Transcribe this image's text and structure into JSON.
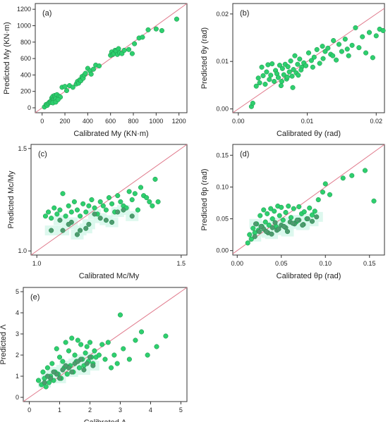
{
  "figure": {
    "accent_point_color": "#2ecf6e",
    "dark_point_color": "#4f9a6f",
    "point_stroke": "#1c8f4a",
    "identity_line_color": "#e07a8c",
    "tint_color": "#d9f7ec"
  },
  "chart_data": [
    {
      "id": "a",
      "type": "scatter",
      "panel_label": "(a)",
      "xlabel": "Calibrated My (KN·m)",
      "ylabel": "Predicted My (KN·m)",
      "xlim": [
        -60,
        1270
      ],
      "ylim": [
        -60,
        1270
      ],
      "xticks": [
        0,
        200,
        400,
        600,
        800,
        1000,
        1200
      ],
      "yticks": [
        0,
        200,
        400,
        600,
        800,
        1000,
        1200
      ],
      "xtick_labels": [
        "0",
        "200",
        "400",
        "600",
        "800",
        "1000",
        "1200"
      ],
      "ytick_labels": [
        "0",
        "200",
        "400",
        "600",
        "800",
        "1000",
        "1200"
      ],
      "identity_line": true,
      "x": [
        20,
        35,
        45,
        55,
        65,
        75,
        80,
        85,
        90,
        95,
        100,
        105,
        110,
        115,
        120,
        130,
        150,
        160,
        175,
        200,
        215,
        240,
        270,
        300,
        310,
        320,
        330,
        340,
        350,
        360,
        370,
        380,
        400,
        420,
        430,
        450,
        470,
        500,
        600,
        610,
        620,
        630,
        640,
        650,
        660,
        670,
        680,
        700,
        720,
        760,
        790,
        810,
        850,
        880,
        930,
        1000,
        1050,
        1180,
        95,
        120,
        140
      ],
      "y": [
        10,
        40,
        30,
        55,
        70,
        80,
        65,
        120,
        90,
        140,
        100,
        85,
        150,
        130,
        110,
        160,
        140,
        130,
        250,
        260,
        210,
        270,
        250,
        290,
        320,
        300,
        340,
        330,
        380,
        360,
        400,
        420,
        480,
        450,
        410,
        470,
        520,
        510,
        640,
        680,
        650,
        660,
        700,
        690,
        650,
        720,
        670,
        660,
        700,
        710,
        660,
        780,
        850,
        860,
        950,
        960,
        940,
        1080,
        60,
        70,
        100
      ]
    },
    {
      "id": "b",
      "type": "scatter",
      "panel_label": "(b)",
      "xlabel": "Calibrated θy (rad)",
      "ylabel": "Predicted θy (rad)",
      "xlim": [
        -0.0008,
        0.0212
      ],
      "ylim": [
        -0.0008,
        0.0222
      ],
      "xticks": [
        0,
        0.01,
        0.02
      ],
      "yticks": [
        0,
        0.01,
        0.02
      ],
      "xtick_labels": [
        "0.00",
        "0.01",
        "0.02"
      ],
      "ytick_labels": [
        "0.00",
        "0.01",
        "0.02"
      ],
      "identity_line": true,
      "x": [
        0.0019,
        0.0021,
        0.0026,
        0.0029,
        0.0031,
        0.0034,
        0.0036,
        0.0039,
        0.0041,
        0.0043,
        0.0045,
        0.0047,
        0.0049,
        0.0052,
        0.0054,
        0.0056,
        0.0058,
        0.006,
        0.0062,
        0.0064,
        0.0066,
        0.0068,
        0.007,
        0.0072,
        0.0074,
        0.0076,
        0.0078,
        0.008,
        0.0082,
        0.0084,
        0.0086,
        0.0089,
        0.0092,
        0.0095,
        0.0098,
        0.0102,
        0.0106,
        0.011,
        0.0114,
        0.0118,
        0.0122,
        0.0126,
        0.013,
        0.0134,
        0.0138,
        0.0142,
        0.0146,
        0.015,
        0.0155,
        0.016,
        0.0165,
        0.017,
        0.0175,
        0.018,
        0.0185,
        0.019,
        0.0195,
        0.02,
        0.0205,
        0.021,
        0.0063,
        0.0071,
        0.0079,
        0.0087,
        0.0091,
        0.0108,
        0.0123,
        0.0137,
        0.0158
      ],
      "y": [
        0.0005,
        0.0012,
        0.0048,
        0.0065,
        0.0055,
        0.0088,
        0.007,
        0.0052,
        0.0078,
        0.0093,
        0.0062,
        0.0071,
        0.0095,
        0.0058,
        0.0081,
        0.0074,
        0.0066,
        0.0092,
        0.0049,
        0.0085,
        0.0072,
        0.0094,
        0.0063,
        0.0089,
        0.0078,
        0.0101,
        0.0069,
        0.0083,
        0.0112,
        0.0076,
        0.0094,
        0.0105,
        0.0088,
        0.0097,
        0.0091,
        0.0118,
        0.0102,
        0.0109,
        0.0125,
        0.0096,
        0.0132,
        0.0121,
        0.0128,
        0.0115,
        0.0144,
        0.0103,
        0.0136,
        0.0121,
        0.0147,
        0.0112,
        0.0134,
        0.0171,
        0.0129,
        0.0152,
        0.0118,
        0.0161,
        0.0108,
        0.0154,
        0.0168,
        0.0165,
        0.0058,
        0.0067,
        0.0045,
        0.0071,
        0.0082,
        0.0088,
        0.0106,
        0.0112,
        0.0126
      ]
    },
    {
      "id": "c",
      "type": "scatter",
      "panel_label": "(c)",
      "xlabel": "Calibrated Mc/My",
      "ylabel": "Predicted Mc/My",
      "xlim": [
        0.98,
        1.52
      ],
      "ylim": [
        0.98,
        1.52
      ],
      "xticks": [
        1.0,
        1.5
      ],
      "yticks": [
        1.0,
        1.5
      ],
      "xtick_labels": [
        "1.0",
        "1.5"
      ],
      "ytick_labels": [
        "1.0",
        "1.5"
      ],
      "identity_line": true,
      "x": [
        1.03,
        1.04,
        1.05,
        1.06,
        1.07,
        1.08,
        1.09,
        1.1,
        1.11,
        1.12,
        1.13,
        1.14,
        1.15,
        1.16,
        1.17,
        1.18,
        1.19,
        1.2,
        1.21,
        1.22,
        1.23,
        1.24,
        1.25,
        1.26,
        1.27,
        1.28,
        1.29,
        1.3,
        1.31,
        1.32,
        1.33,
        1.34,
        1.35,
        1.36,
        1.37,
        1.38,
        1.39,
        1.4,
        1.41,
        1.42,
        1.09,
        1.12,
        1.15,
        1.18,
        1.22,
        1.26,
        1.3,
        1.05,
        1.08,
        1.11,
        1.14,
        1.17,
        1.2,
        1.24,
        1.28,
        1.33
      ],
      "y": [
        1.17,
        1.19,
        1.16,
        1.21,
        1.18,
        1.2,
        1.28,
        1.17,
        1.22,
        1.19,
        1.24,
        1.2,
        1.17,
        1.23,
        1.19,
        1.22,
        1.25,
        1.21,
        1.18,
        1.24,
        1.22,
        1.2,
        1.26,
        1.23,
        1.19,
        1.27,
        1.24,
        1.22,
        1.21,
        1.29,
        1.25,
        1.28,
        1.2,
        1.31,
        1.27,
        1.26,
        1.24,
        1.22,
        1.35,
        1.24,
        1.1,
        1.14,
        1.1,
        1.13,
        1.16,
        1.14,
        1.2,
        1.1,
        1.15,
        1.13,
        1.08,
        1.11,
        1.18,
        1.15,
        1.19,
        1.17
      ]
    },
    {
      "id": "d",
      "type": "scatter",
      "panel_label": "(d)",
      "xlabel": "Calibrated θp (rad)",
      "ylabel": "Predicted θp (rad)",
      "xlim": [
        -0.005,
        0.167
      ],
      "ylim": [
        -0.007,
        0.167
      ],
      "xticks": [
        0,
        0.05,
        0.1,
        0.15
      ],
      "yticks": [
        0,
        0.05,
        0.1,
        0.15
      ],
      "xtick_labels": [
        "0.00",
        "0.05",
        "0.10",
        "0.15"
      ],
      "ytick_labels": [
        "0.00",
        "0.05",
        "0.10",
        "0.15"
      ],
      "identity_line": true,
      "x": [
        0.012,
        0.014,
        0.016,
        0.018,
        0.02,
        0.022,
        0.024,
        0.026,
        0.028,
        0.03,
        0.032,
        0.034,
        0.036,
        0.038,
        0.04,
        0.042,
        0.044,
        0.046,
        0.048,
        0.05,
        0.052,
        0.055,
        0.058,
        0.061,
        0.064,
        0.067,
        0.07,
        0.073,
        0.076,
        0.079,
        0.082,
        0.085,
        0.088,
        0.092,
        0.097,
        0.1,
        0.105,
        0.12,
        0.13,
        0.145,
        0.155,
        0.02,
        0.025,
        0.03,
        0.035,
        0.04,
        0.045,
        0.05,
        0.055,
        0.06,
        0.065,
        0.07,
        0.075,
        0.08,
        0.085,
        0.09,
        0.021,
        0.027,
        0.033,
        0.039,
        0.043,
        0.047,
        0.053,
        0.057,
        0.063,
        0.068,
        0.074
      ],
      "y": [
        0.012,
        0.025,
        0.018,
        0.035,
        0.028,
        0.042,
        0.032,
        0.055,
        0.038,
        0.064,
        0.045,
        0.058,
        0.04,
        0.066,
        0.05,
        0.062,
        0.038,
        0.07,
        0.055,
        0.068,
        0.048,
        0.06,
        0.07,
        0.052,
        0.066,
        0.045,
        0.069,
        0.058,
        0.061,
        0.05,
        0.067,
        0.056,
        0.062,
        0.08,
        0.092,
        0.105,
        0.088,
        0.114,
        0.118,
        0.126,
        0.078,
        0.022,
        0.03,
        0.034,
        0.028,
        0.036,
        0.032,
        0.04,
        0.036,
        0.045,
        0.042,
        0.048,
        0.041,
        0.05,
        0.046,
        0.053,
        0.042,
        0.038,
        0.03,
        0.026,
        0.044,
        0.034,
        0.038,
        0.03,
        0.043,
        0.048,
        0.04
      ]
    },
    {
      "id": "e",
      "type": "scatter",
      "panel_label": "(e)",
      "xlabel": "Calibrated Λ",
      "ylabel": "Predicted Λ",
      "xlim": [
        -0.2,
        5.2
      ],
      "ylim": [
        -0.2,
        5.2
      ],
      "xticks": [
        0,
        1,
        2,
        3,
        4,
        5
      ],
      "yticks": [
        0,
        1,
        2,
        3,
        4,
        5
      ],
      "xtick_labels": [
        "0",
        "1",
        "2",
        "3",
        "4",
        "5"
      ],
      "ytick_labels": [
        "0",
        "1",
        "2",
        "3",
        "4",
        "5"
      ],
      "identity_line": true,
      "x": [
        0.3,
        0.4,
        0.45,
        0.5,
        0.55,
        0.6,
        0.65,
        0.7,
        0.75,
        0.8,
        0.85,
        0.9,
        0.95,
        1.0,
        1.05,
        1.1,
        1.15,
        1.2,
        1.25,
        1.3,
        1.35,
        1.4,
        1.45,
        1.5,
        1.55,
        1.6,
        1.65,
        1.7,
        1.75,
        1.8,
        1.85,
        1.9,
        1.95,
        2.0,
        2.05,
        2.1,
        2.15,
        2.2,
        2.3,
        2.4,
        2.5,
        2.6,
        2.7,
        2.8,
        2.9,
        3.0,
        3.1,
        3.3,
        3.5,
        3.7,
        3.9,
        4.2,
        4.5,
        0.5,
        0.7,
        0.9,
        1.1,
        1.3,
        1.5,
        1.7,
        1.9,
        2.1,
        0.6,
        0.8,
        1.0,
        1.2,
        1.4,
        1.6,
        1.8,
        2.0
      ],
      "y": [
        0.8,
        0.6,
        1.2,
        0.9,
        0.5,
        1.4,
        0.7,
        1.0,
        1.6,
        0.8,
        1.2,
        2.3,
        1.1,
        1.9,
        0.9,
        1.7,
        1.4,
        2.6,
        1.1,
        2.2,
        1.5,
        2.8,
        1.2,
        2.0,
        1.7,
        2.7,
        1.4,
        2.5,
        1.8,
        1.5,
        2.1,
        2.4,
        1.7,
        2.6,
        1.9,
        1.6,
        2.2,
        1.9,
        2.0,
        2.5,
        1.8,
        2.6,
        1.4,
        2.0,
        1.6,
        3.9,
        2.3,
        1.8,
        2.7,
        3.1,
        2.0,
        2.4,
        2.9,
        0.7,
        0.9,
        1.1,
        1.3,
        1.4,
        1.6,
        1.8,
        1.6,
        1.5,
        1.0,
        1.2,
        0.9,
        1.5,
        1.2,
        1.7,
        1.3,
        1.9
      ]
    }
  ]
}
